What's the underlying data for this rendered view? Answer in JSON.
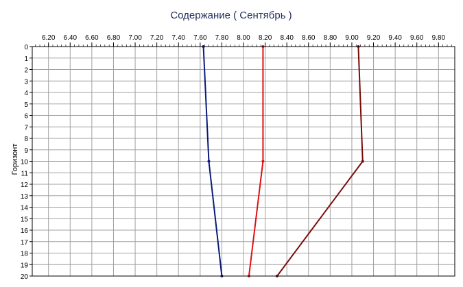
{
  "chart_data": {
    "type": "line",
    "title": "Содержание    ( Сентябрь )",
    "xlabel": "",
    "ylabel": "Горизонт",
    "xlim": [
      6.05,
      9.95
    ],
    "ylim": [
      0,
      20
    ],
    "y_inverted": true,
    "x_axis_position": "top",
    "grid": true,
    "x_ticks": [
      "6.20",
      "6.40",
      "6.60",
      "6.80",
      "7.00",
      "7.20",
      "7.40",
      "7.60",
      "7.80",
      "8.00",
      "8.20",
      "8.40",
      "8.60",
      "8.80",
      "9.00",
      "9.20",
      "9.40",
      "9.60",
      "9.80"
    ],
    "y_ticks": [
      "0",
      "1",
      "2",
      "3",
      "4",
      "5",
      "6",
      "7",
      "8",
      "9",
      "10",
      "11",
      "12",
      "13",
      "14",
      "15",
      "16",
      "17",
      "18",
      "19",
      "20"
    ],
    "series": [
      {
        "color": "#0a1a7a",
        "points": [
          {
            "x": 7.63,
            "y": 0
          },
          {
            "x": 7.68,
            "y": 10
          },
          {
            "x": 7.8,
            "y": 20
          }
        ]
      },
      {
        "color": "#e01010",
        "points": [
          {
            "x": 8.18,
            "y": 0
          },
          {
            "x": 8.18,
            "y": 10
          },
          {
            "x": 8.05,
            "y": 20
          }
        ]
      },
      {
        "color": "#7a0a0a",
        "points": [
          {
            "x": 9.06,
            "y": 0
          },
          {
            "x": 9.1,
            "y": 10
          },
          {
            "x": 8.31,
            "y": 20
          }
        ]
      }
    ]
  }
}
